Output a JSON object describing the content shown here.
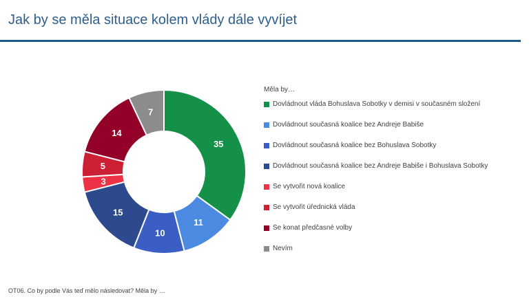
{
  "header": {
    "title": "Jak by se měla situace kolem vlády dále vyvíjet"
  },
  "chart_data": {
    "type": "pie",
    "variant": "donut",
    "legend_title": "Měla by…",
    "legend_position": "right",
    "slices": [
      {
        "label": "Dovládnout vláda Bohuslava Sobotky v demisi v současném složení",
        "value": 35,
        "color": "#159049"
      },
      {
        "label": "Dovládnout současná koalice bez Andreje Babiše",
        "value": 11,
        "color": "#4b8ae0"
      },
      {
        "label": "Dovládnout současná koalice bez Bohuslava Sobotky",
        "value": 10,
        "color": "#3a5ec4"
      },
      {
        "label": "Dovládnout současná koalice bez Andreje Babiše i Bohuslava Sobotky",
        "value": 15,
        "color": "#2d4a8e"
      },
      {
        "label": "Se vytvořit nová koalice",
        "value": 3,
        "color": "#ec3244"
      },
      {
        "label": "Se vytvořit úřednická vláda",
        "value": 5,
        "color": "#cc2035"
      },
      {
        "label": "Se konat předčasné volby",
        "value": 14,
        "color": "#930028"
      },
      {
        "label": "Nevím",
        "value": 7,
        "color": "#8c8c8c"
      }
    ]
  },
  "footnote": "OT06. Co by podle Vás teď mělo následovat? Měla by …"
}
